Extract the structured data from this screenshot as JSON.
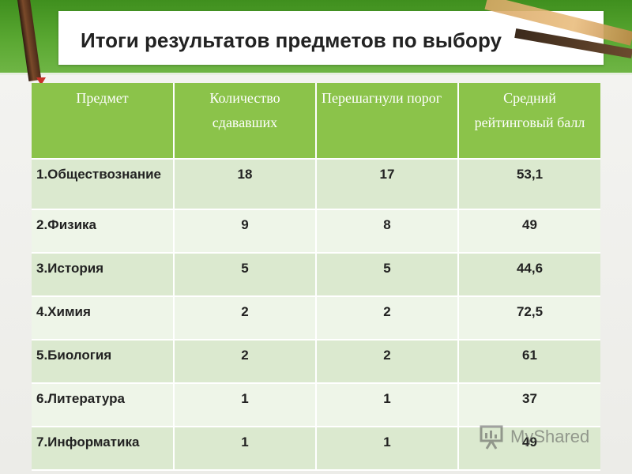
{
  "slide": {
    "title": "Итоги результатов предметов по выбору"
  },
  "table": {
    "headers": [
      "Предмет",
      "Количество сдававших",
      "Перешагнули порог",
      "Средний рейтинговый балл"
    ],
    "rows": [
      [
        "1.Обществознание",
        "18",
        "17",
        "53,1"
      ],
      [
        "2.Физика",
        "9",
        "8",
        "49"
      ],
      [
        "3.История",
        "5",
        "5",
        "44,6"
      ],
      [
        "4.Химия",
        "2",
        "2",
        "72,5"
      ],
      [
        "5.Биология",
        "2",
        "2",
        "61"
      ],
      [
        "6.Литература",
        "1",
        "1",
        "37"
      ],
      [
        "7.Информатика",
        "1",
        "1",
        "49"
      ]
    ]
  },
  "watermark": {
    "text": "MyShared",
    "icon": "presentation-board-icon"
  },
  "colors": {
    "band_green": "#5aa832",
    "header_green": "#8bc34a",
    "row_dark": "#dbe9cf",
    "row_light": "#eef5e8"
  }
}
